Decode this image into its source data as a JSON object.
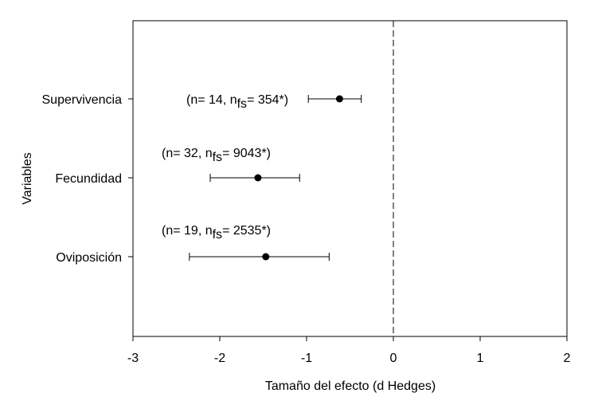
{
  "chart_data": {
    "type": "forest",
    "xlabel": "Tamaño del efecto (d Hedges)",
    "ylabel": "Variables",
    "xlim": [
      -3,
      2
    ],
    "xticks": [
      "-3",
      "-2",
      "-1",
      "0",
      "1",
      "2"
    ],
    "reference_line": {
      "x": 0,
      "style": "dashed"
    },
    "grid": false,
    "rows": [
      {
        "label": "Supervivencia",
        "effect": -0.62,
        "ci": [
          -0.98,
          -0.37
        ],
        "ann_pre": "(n= 14, n",
        "ann_sub": "fs",
        "ann_post": "= 354*)"
      },
      {
        "label": "Fecundidad",
        "effect": -1.56,
        "ci": [
          -2.11,
          -1.08
        ],
        "ann_pre": "(n= 32, n",
        "ann_sub": "fs",
        "ann_post": "= 9043*)"
      },
      {
        "label": "Oviposición",
        "effect": -1.47,
        "ci": [
          -2.35,
          -0.74
        ],
        "ann_pre": "(n= 19, n",
        "ann_sub": "fs",
        "ann_post": "= 2535*)"
      }
    ]
  }
}
